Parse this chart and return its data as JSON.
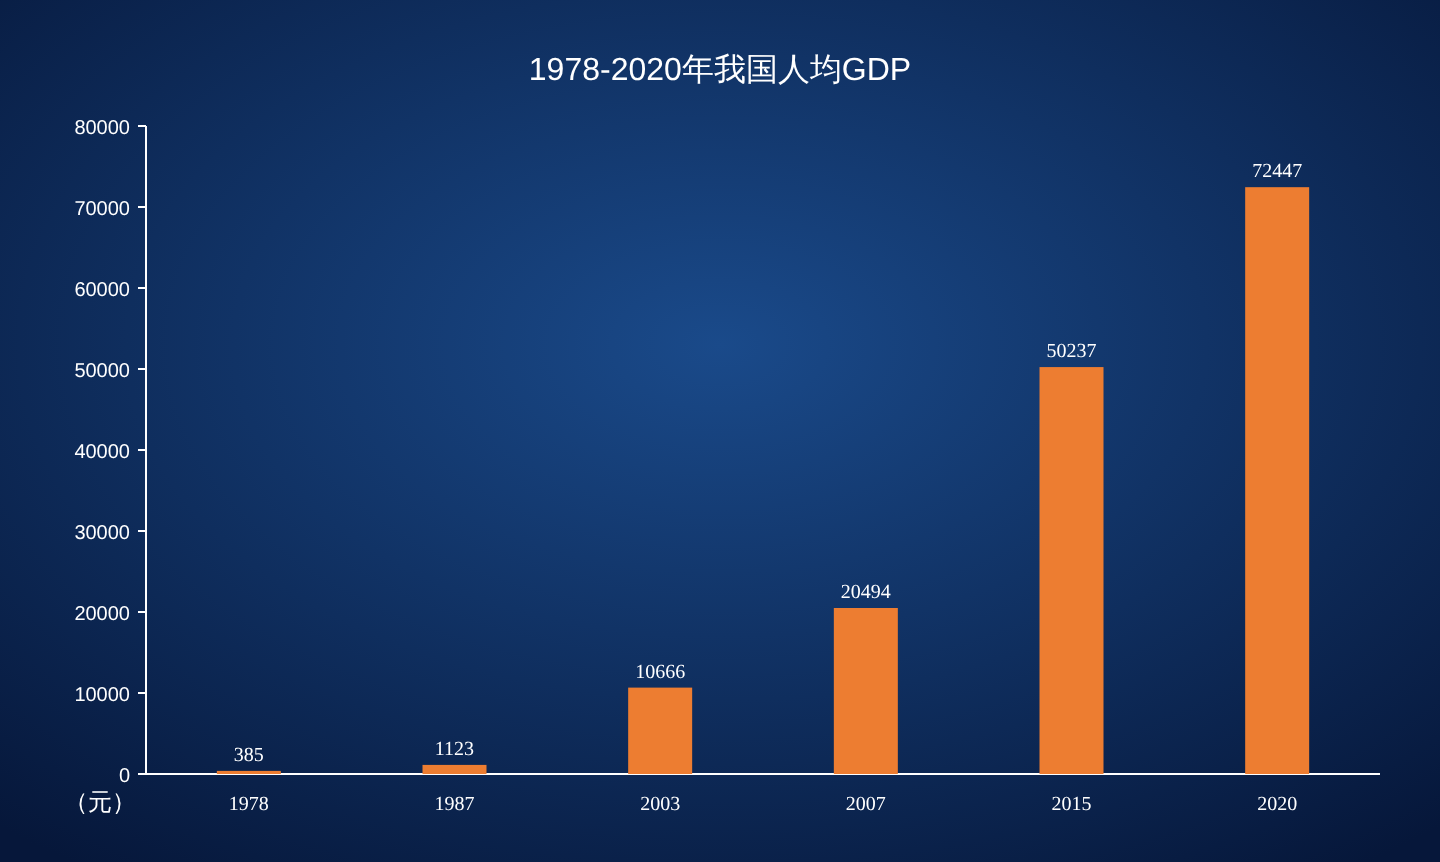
{
  "chart_data": {
    "type": "bar",
    "title": "1978-2020年我国人均GDP",
    "ylabel": "（元）",
    "categories": [
      "1978",
      "1987",
      "2003",
      "2007",
      "2015",
      "2020"
    ],
    "values": [
      385,
      1123,
      10666,
      20494,
      50237,
      72447
    ],
    "color": "#ed7d31",
    "ylim": [
      0,
      80000
    ],
    "yticks": [
      0,
      10000,
      20000,
      30000,
      40000,
      50000,
      60000,
      70000,
      80000
    ],
    "data_labels": true,
    "grid": false
  }
}
